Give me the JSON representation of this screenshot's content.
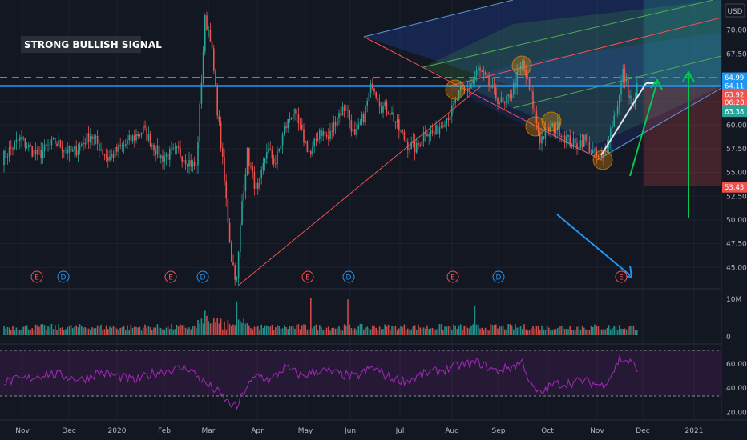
{
  "banner": "STRONG BULLISH SIGNAL",
  "currency": "USD",
  "colors": {
    "background": "#131722",
    "up": "#26a69a",
    "down": "#ef5350",
    "rsi": "#9c27b0",
    "blue_line": "#2196f3",
    "green_arrow": "#00c853"
  },
  "chart_data": {
    "type": "candlestick",
    "x_ticks": [
      "Nov",
      "Dec",
      "2020",
      "Feb",
      "Mar",
      "Apr",
      "May",
      "Jun",
      "Jul",
      "Aug",
      "Sep",
      "Oct",
      "Nov",
      "Dec",
      "2021"
    ],
    "price_axis": {
      "ylim": [
        43,
        73
      ],
      "ticks": [
        "70.00",
        "67.50",
        "62.50",
        "60.00",
        "57.50",
        "55.00",
        "52.50",
        "50.00",
        "47.50",
        "45.00"
      ]
    },
    "price_tags": [
      {
        "label": "64.99",
        "value": 64.99,
        "color": "#2196f3"
      },
      {
        "label": "64.11",
        "value": 64.11,
        "color": "#2196f3"
      },
      {
        "label": "63.92",
        "value": 63.2,
        "color": "#ef5350"
      },
      {
        "label": "06:28:42",
        "value": 62.4,
        "color": "#ef5350"
      },
      {
        "label": "63.38",
        "value": 61.4,
        "color": "#26a69a"
      },
      {
        "label": "53.43",
        "value": 53.43,
        "color": "#ef5350"
      }
    ],
    "levels": {
      "dashed_resistance": 64.99,
      "solid_resistance": 64.11
    },
    "event_markers": [
      {
        "label": "E",
        "kind": "earnings"
      },
      {
        "label": "D",
        "kind": "dividend"
      },
      {
        "label": "E",
        "kind": "earnings"
      },
      {
        "label": "D",
        "kind": "dividend"
      },
      {
        "label": "E",
        "kind": "earnings"
      },
      {
        "label": "D",
        "kind": "dividend"
      },
      {
        "label": "E",
        "kind": "earnings"
      },
      {
        "label": "D",
        "kind": "dividend"
      },
      {
        "label": "E",
        "kind": "earnings"
      }
    ],
    "volume_axis": {
      "ticks": [
        "10M",
        "0"
      ],
      "max": 10
    },
    "rsi_axis": {
      "ticks": [
        "60.00",
        "40.00",
        "20.00"
      ],
      "ylim": [
        15,
        75
      ],
      "bands": [
        70,
        30
      ]
    },
    "price_anchors": [
      [
        0,
        56.5
      ],
      [
        10,
        58.5
      ],
      [
        20,
        56.8
      ],
      [
        30,
        58.2
      ],
      [
        40,
        57.0
      ],
      [
        50,
        59.0
      ],
      [
        60,
        56.5
      ],
      [
        70,
        58.0
      ],
      [
        80,
        59.5
      ],
      [
        90,
        56.6
      ],
      [
        100,
        57.2
      ],
      [
        105,
        56.3
      ],
      [
        110,
        55.5
      ],
      [
        115,
        71.0
      ],
      [
        118,
        69.5
      ],
      [
        121,
        63.5
      ],
      [
        124,
        58.0
      ],
      [
        127,
        52.0
      ],
      [
        130,
        46.0
      ],
      [
        133,
        43.5
      ],
      [
        136,
        52.0
      ],
      [
        139,
        57.0
      ],
      [
        142,
        54.5
      ],
      [
        145,
        52.8
      ],
      [
        150,
        57.5
      ],
      [
        155,
        56.0
      ],
      [
        160,
        59.5
      ],
      [
        165,
        61.5
      ],
      [
        170,
        59.0
      ],
      [
        175,
        56.8
      ],
      [
        180,
        59.5
      ],
      [
        185,
        58.5
      ],
      [
        190,
        61.0
      ],
      [
        195,
        62.0
      ],
      [
        200,
        58.5
      ],
      [
        205,
        61.0
      ],
      [
        210,
        64.5
      ],
      [
        215,
        62.0
      ],
      [
        220,
        61.5
      ],
      [
        225,
        59.5
      ],
      [
        230,
        58.0
      ],
      [
        235,
        57.5
      ],
      [
        240,
        59.5
      ],
      [
        245,
        59.0
      ],
      [
        250,
        60.5
      ],
      [
        255,
        61.5
      ],
      [
        260,
        63.5
      ],
      [
        265,
        64.0
      ],
      [
        270,
        65.8
      ],
      [
        275,
        64.5
      ],
      [
        280,
        63.0
      ],
      [
        285,
        62.0
      ],
      [
        290,
        64.0
      ],
      [
        295,
        66.5
      ],
      [
        300,
        63.0
      ],
      [
        305,
        58.5
      ],
      [
        310,
        59.5
      ],
      [
        315,
        59.8
      ],
      [
        320,
        58.5
      ],
      [
        325,
        57.8
      ],
      [
        330,
        58.5
      ],
      [
        335,
        57.0
      ],
      [
        340,
        56.2
      ],
      [
        345,
        59.5
      ],
      [
        350,
        63.0
      ],
      [
        352,
        65.5
      ],
      [
        355,
        63.5
      ],
      [
        358,
        61.5
      ],
      [
        360,
        63.92
      ]
    ],
    "rsi_anchors": [
      [
        0,
        45
      ],
      [
        15,
        48
      ],
      [
        25,
        52
      ],
      [
        35,
        50
      ],
      [
        45,
        47
      ],
      [
        55,
        53
      ],
      [
        65,
        50
      ],
      [
        75,
        46
      ],
      [
        85,
        52
      ],
      [
        95,
        55
      ],
      [
        105,
        57
      ],
      [
        115,
        44
      ],
      [
        122,
        37
      ],
      [
        128,
        28
      ],
      [
        133,
        24
      ],
      [
        138,
        40
      ],
      [
        145,
        51
      ],
      [
        152,
        46
      ],
      [
        160,
        57
      ],
      [
        170,
        50
      ],
      [
        180,
        55
      ],
      [
        190,
        52
      ],
      [
        200,
        49
      ],
      [
        210,
        57
      ],
      [
        220,
        48
      ],
      [
        230,
        46
      ],
      [
        240,
        52
      ],
      [
        250,
        55
      ],
      [
        260,
        59
      ],
      [
        270,
        61
      ],
      [
        280,
        54
      ],
      [
        290,
        58
      ],
      [
        295,
        62
      ],
      [
        300,
        41
      ],
      [
        305,
        35
      ],
      [
        312,
        43
      ],
      [
        320,
        44
      ],
      [
        330,
        46
      ],
      [
        340,
        42
      ],
      [
        345,
        50
      ],
      [
        350,
        64
      ],
      [
        355,
        62
      ],
      [
        360,
        57
      ]
    ],
    "volume_spikes": [
      [
        115,
        6.5
      ],
      [
        133,
        9.0
      ],
      [
        175,
        10.0
      ],
      [
        196,
        9.5
      ],
      [
        268,
        7.8
      ]
    ]
  }
}
